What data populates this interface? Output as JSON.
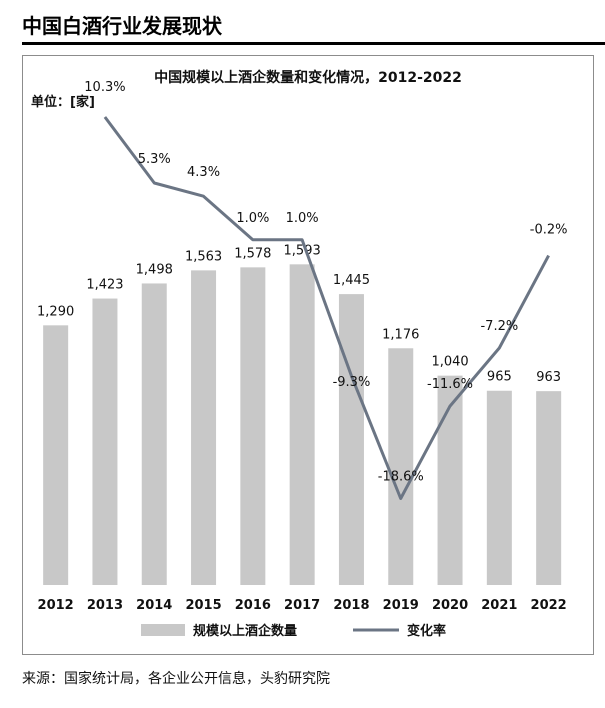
{
  "header": {
    "title": "中国白酒行业发展现状"
  },
  "footer": {
    "source": "来源：国家统计局，各企业公开信息，头豹研究院"
  },
  "colors": {
    "bar": "#c8c8c8",
    "line": "#6b7584",
    "rule": "#000000",
    "border": "#8c8c8c"
  },
  "chart_data": {
    "type": "bar",
    "title": "中国规模以上酒企数量和变化情况，2012-2022",
    "unit_label": "单位：[家]",
    "categories": [
      "2012",
      "2013",
      "2014",
      "2015",
      "2016",
      "2017",
      "2018",
      "2019",
      "2020",
      "2021",
      "2022"
    ],
    "series": [
      {
        "name": "规模以上酒企数量",
        "type": "bar",
        "values": [
          1290,
          1423,
          1498,
          1563,
          1578,
          1593,
          1445,
          1176,
          1040,
          965,
          963
        ],
        "labels": [
          "1,290",
          "1,423",
          "1,498",
          "1,563",
          "1,578",
          "1,593",
          "1,445",
          "1,176",
          "1,040",
          "965",
          "963"
        ]
      },
      {
        "name": "变化率",
        "type": "line",
        "values": [
          null,
          10.3,
          5.3,
          4.3,
          1.0,
          1.0,
          -9.3,
          -18.6,
          -11.6,
          -7.2,
          -0.2
        ],
        "labels": [
          null,
          "10.3%",
          "5.3%",
          "4.3%",
          "1.0%",
          "1.0%",
          "-9.3%",
          "-18.6%",
          "-11.6%",
          "-7.2%",
          "-0.2%"
        ]
      }
    ],
    "ylim": [
      0,
      1750
    ],
    "y2lim": [
      -22,
      14
    ],
    "legend_position": "bottom",
    "grid": false
  }
}
